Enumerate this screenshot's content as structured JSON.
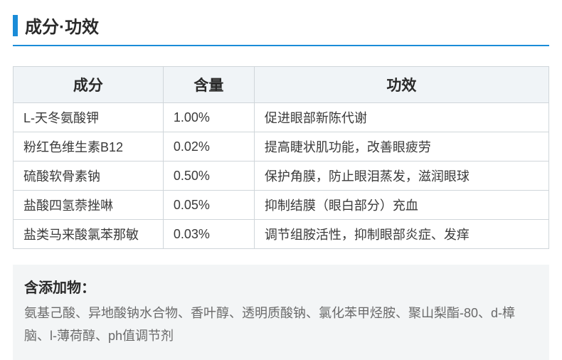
{
  "section_title": "成分·功效",
  "accent_color": "#1a8cd8",
  "table": {
    "header_bg": "#f0f4f7",
    "border_color": "#d0d6da",
    "columns": [
      {
        "key": "ingredient",
        "label": "成分",
        "width": "28%"
      },
      {
        "key": "amount",
        "label": "含量",
        "width": "17%"
      },
      {
        "key": "effect",
        "label": "功效",
        "width": "55%"
      }
    ],
    "rows": [
      {
        "ingredient": "L-天冬氨酸钾",
        "amount": "1.00%",
        "effect": "促进眼部新陈代谢"
      },
      {
        "ingredient": "粉红色维生素B12",
        "amount": "0.02%",
        "effect": "提高睫状肌功能，改善眼疲劳"
      },
      {
        "ingredient": "硫酸软骨素钠",
        "amount": "0.50%",
        "effect": "保护角膜，防止眼泪蒸发，滋润眼球"
      },
      {
        "ingredient": "盐酸四氢萘挫啉",
        "amount": "0.05%",
        "effect": "抑制结膜（眼白部分）充血"
      },
      {
        "ingredient": "盐类马来酸氯苯那敏",
        "amount": "0.03%",
        "effect": "调节组胺活性，抑制眼部炎症、发痒"
      }
    ]
  },
  "additives": {
    "title": "含添加物：",
    "body": "氨基己酸、异地酸钠水合物、香叶醇、透明质酸钠、氯化苯甲烃胺、聚山梨酯-80、d-樟脑、l-薄荷醇、ph值调节剂",
    "box_bg": "#f3f5f6",
    "body_color": "#6a6a6a"
  }
}
